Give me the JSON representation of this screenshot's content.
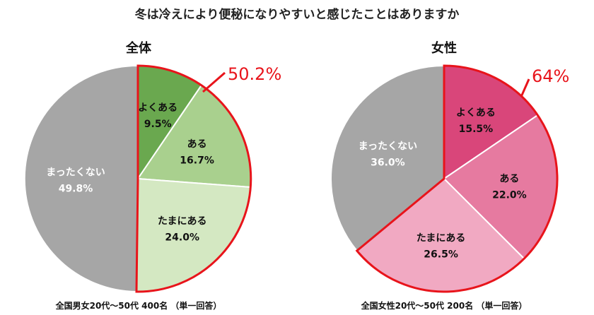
{
  "page_title": "冬は冷えにより便秘になりやすいと感じたことはありますか",
  "colors": {
    "highlight": "#e8141b",
    "unselected": "#a6a6a6"
  },
  "chart_data": [
    {
      "type": "pie",
      "title": "全体",
      "callout": "50.2%",
      "footnote": "全国男女20代～50代 400名 （単一回答）",
      "slices": [
        {
          "label": "よくある",
          "value": 9.5,
          "value_text": "9.5%",
          "color": "#6aa84f",
          "text_color": "#111111"
        },
        {
          "label": "ある",
          "value": 16.7,
          "value_text": "16.7%",
          "color": "#a9d08e",
          "text_color": "#111111"
        },
        {
          "label": "たまにある",
          "value": 24.0,
          "value_text": "24.0%",
          "color": "#d4e8c2",
          "text_color": "#111111"
        },
        {
          "label": "まったくない",
          "value": 49.8,
          "value_text": "49.8%",
          "color": "#a6a6a6",
          "text_color": "#ffffff"
        }
      ]
    },
    {
      "type": "pie",
      "title": "女性",
      "callout": "64%",
      "footnote": "全国女性20代～50代 200名 （単一回答）",
      "slices": [
        {
          "label": "よくある",
          "value": 15.5,
          "value_text": "15.5%",
          "color": "#d9467a",
          "text_color": "#111111"
        },
        {
          "label": "ある",
          "value": 22.0,
          "value_text": "22.0%",
          "color": "#e67aa0",
          "text_color": "#111111"
        },
        {
          "label": "たまにある",
          "value": 26.5,
          "value_text": "26.5%",
          "color": "#f1a9c2",
          "text_color": "#111111"
        },
        {
          "label": "まったくない",
          "value": 36.0,
          "value_text": "36.0%",
          "color": "#a6a6a6",
          "text_color": "#ffffff"
        }
      ]
    }
  ]
}
